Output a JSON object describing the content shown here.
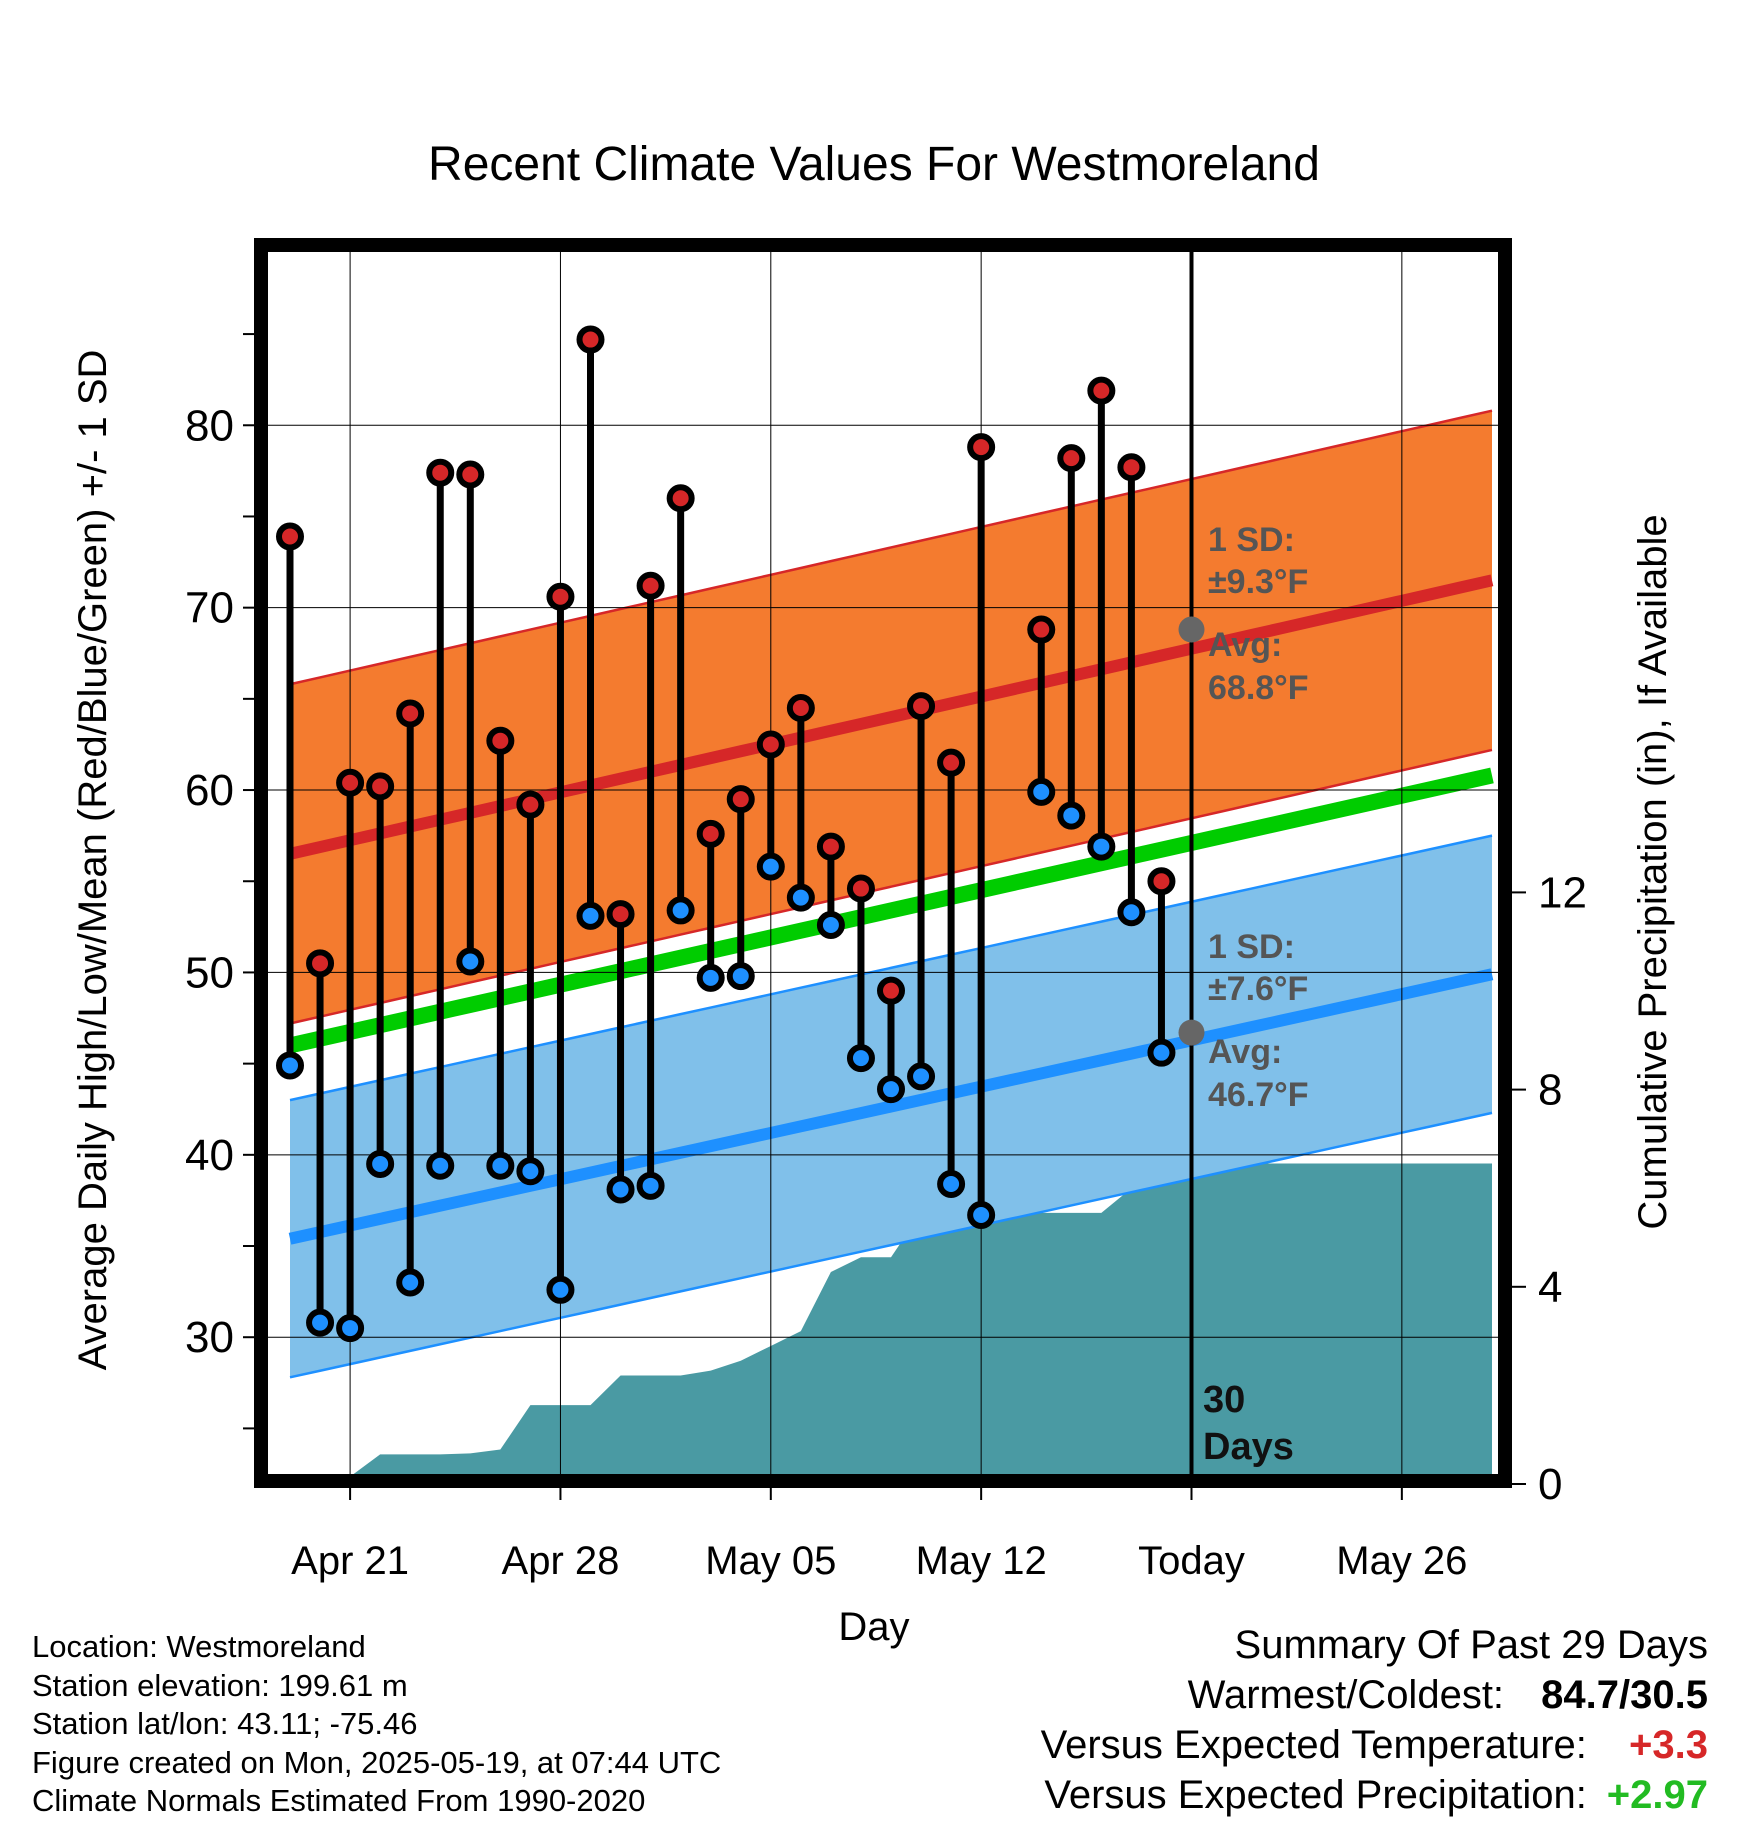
{
  "chart_data": {
    "type": "range-plot",
    "title": "Recent Climate Values For Westmoreland",
    "xlabel": "Day",
    "ylabel_left": "Average Daily High/Low/Mean (Red/Blue/Green) +/- 1 SD",
    "ylabel_right": "Cumulative Precipitation (in), If Available",
    "ylim_left": [
      22.5,
      89.5
    ],
    "ylim_right": [
      0,
      20
    ],
    "left_ticks": [
      30,
      40,
      50,
      60,
      70,
      80
    ],
    "right_ticks": [
      0,
      4,
      8,
      12
    ],
    "x_tick_labels": [
      "Apr 21",
      "Apr 28",
      "May 05",
      "May 12",
      "Today",
      "May 26"
    ],
    "today_label": "30\nDays",
    "days": [
      "Apr 19",
      "Apr 20",
      "Apr 21",
      "Apr 22",
      "Apr 23",
      "Apr 24",
      "Apr 25",
      "Apr 26",
      "Apr 27",
      "Apr 28",
      "Apr 29",
      "Apr 30",
      "May 01",
      "May 02",
      "May 03",
      "May 04",
      "May 05",
      "May 06",
      "May 07",
      "May 08",
      "May 09",
      "May 10",
      "May 11",
      "May 12",
      "May 13",
      "May 14",
      "May 15",
      "May 16",
      "May 17",
      "May 18"
    ],
    "highs": [
      73.9,
      50.5,
      60.4,
      60.2,
      64.2,
      77.4,
      77.3,
      62.7,
      59.2,
      70.6,
      84.7,
      53.2,
      71.2,
      76.0,
      57.6,
      59.5,
      62.5,
      64.5,
      56.9,
      54.6,
      49.0,
      64.6,
      61.5,
      78.8,
      null,
      68.8,
      78.2,
      81.9,
      77.7,
      55.0
    ],
    "lows": [
      44.9,
      30.8,
      30.5,
      39.5,
      33.0,
      39.4,
      50.6,
      39.4,
      39.1,
      32.6,
      53.1,
      38.1,
      38.3,
      53.4,
      49.7,
      49.8,
      55.8,
      54.1,
      52.6,
      45.3,
      43.6,
      44.3,
      38.4,
      36.7,
      null,
      59.9,
      58.6,
      56.9,
      53.3,
      45.6
    ],
    "normal_high": {
      "start_date": "Apr 19",
      "start": 56.5,
      "end_date": "May 29",
      "end": 71.5
    },
    "normal_low": {
      "start_date": "Apr 19",
      "start": 35.4,
      "end_date": "May 29",
      "end": 49.9
    },
    "normal_mean": {
      "start_date": "Apr 19",
      "start": 46.0,
      "end_date": "May 29",
      "end": 60.8
    },
    "precip_cumulative": [
      0.1,
      0.1,
      0.15,
      0.6,
      0.6,
      0.6,
      0.62,
      0.7,
      1.6,
      1.6,
      1.6,
      2.2,
      2.2,
      2.2,
      2.3,
      2.5,
      2.8,
      3.1,
      4.3,
      4.6,
      4.6,
      5.5,
      5.5,
      5.5,
      5.5,
      5.5,
      5.5,
      5.5,
      6.0,
      6.5,
      6.5,
      6.5,
      6.5,
      6.5,
      6.5,
      6.5,
      6.5,
      6.5,
      6.5,
      6.5,
      6.5
    ],
    "annotations": {
      "high_sd": "1 SD:",
      "high_sd_val": "±9.3°F",
      "high_avg": "Avg:",
      "high_avg_val": "68.8°F",
      "low_sd": "1 SD:",
      "low_sd_val": "±7.6°F",
      "low_avg": "Avg:",
      "low_avg_val": "46.7°F"
    },
    "colors": {
      "high_band": "#f47b2f",
      "high_line": "#d62728",
      "low_band": "#80c0ea",
      "low_line": "#1e90ff",
      "mean_line": "#00cc00",
      "precip": "#4a9aa3",
      "high_marker": "#d62728",
      "low_marker": "#1e90ff"
    }
  },
  "footer": {
    "location": "Location: Westmoreland",
    "elevation": "Station elevation: 199.61 m",
    "latlon": "Station lat/lon: 43.11; -75.46",
    "created": "Figure created on Mon, 2025-05-19, at 07:44 UTC",
    "normals": "Climate Normals Estimated From 1990-2020"
  },
  "summary": {
    "title": "Summary Of Past 29 Days",
    "warm_cold_label": "Warmest/Coldest:",
    "warm_cold_value": "84.7/30.5",
    "temp_label": "Versus Expected Temperature:",
    "temp_value": "+3.3",
    "temp_color": "#d62728",
    "precip_label": "Versus Expected Precipitation:",
    "precip_value": "+2.97",
    "precip_color": "#22bb22"
  }
}
